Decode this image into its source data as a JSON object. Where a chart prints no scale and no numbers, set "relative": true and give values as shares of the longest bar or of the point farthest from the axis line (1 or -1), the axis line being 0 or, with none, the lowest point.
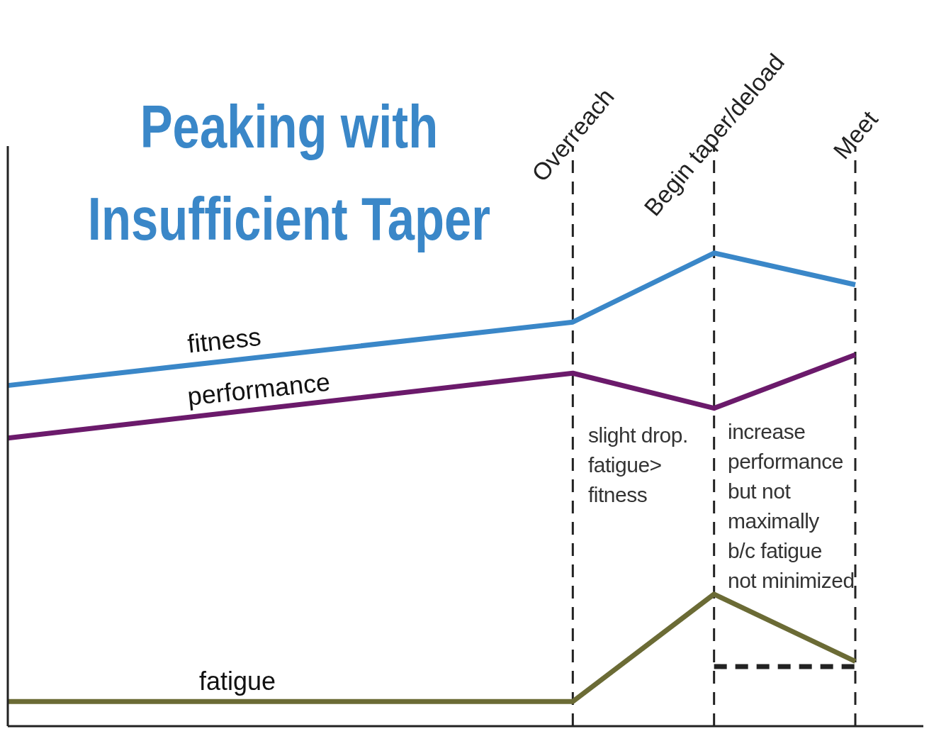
{
  "chart_data": {
    "type": "line",
    "title": "Peaking with Insufficient Taper",
    "relative": true,
    "tick_labels": "x",
    "marker": "none",
    "categories": [
      null,
      null,
      null,
      null,
      null,
      null,
      null,
      null,
      "Overreach",
      null,
      "Begin taper/deload",
      null,
      "Meet"
    ],
    "series": [
      {
        "name": "fitness",
        "color": "#3a87c8",
        "values": [
          0.72,
          null,
          null,
          null,
          null,
          null,
          null,
          null,
          0.854,
          null,
          1.0,
          null,
          0.933
        ]
      },
      {
        "name": "performance",
        "color": "#6b1a6b",
        "values": [
          0.609,
          null,
          null,
          null,
          null,
          null,
          null,
          null,
          0.746,
          null,
          0.672,
          null,
          0.785
        ]
      },
      {
        "name": "fatigue",
        "color": "#6b6b35",
        "values": [
          0.052,
          null,
          null,
          null,
          null,
          null,
          null,
          null,
          0.052,
          null,
          0.279,
          null,
          0.137
        ]
      },
      {
        "type": "line",
        "color": "#222222",
        "line_style": "dashed",
        "values": [
          null,
          null,
          null,
          null,
          null,
          null,
          null,
          null,
          null,
          null,
          0.126,
          null,
          0.126
        ]
      }
    ],
    "ref_lines": [
      {
        "axis": "x",
        "value": "Overreach",
        "color": "#222222",
        "line_style": "dashed"
      },
      {
        "axis": "x",
        "value": "Begin taper/deload",
        "color": "#222222",
        "line_style": "dashed"
      },
      {
        "axis": "x",
        "value": "Meet",
        "color": "#222222",
        "line_style": "dashed"
      }
    ],
    "annotations": [
      "slight drop.\nfatigue>\nfitness",
      "increase\nperformance\nbut not\nmaximally\nb/c fatigue\nnot minimized"
    ]
  }
}
